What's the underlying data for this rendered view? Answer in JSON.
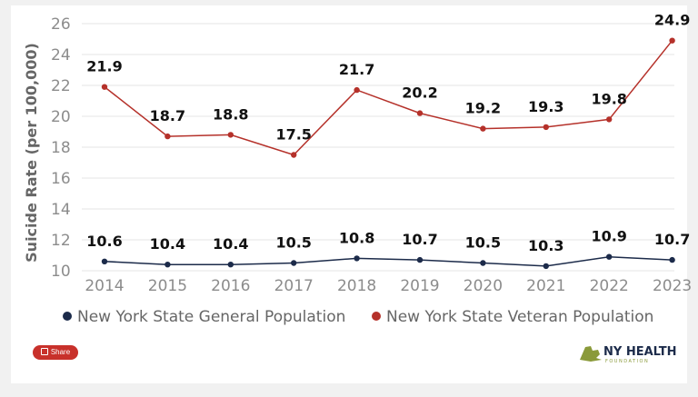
{
  "chart_data": {
    "type": "line",
    "title": "",
    "xlabel": "",
    "ylabel": "Suicide Rate (per 100,000)",
    "x": [
      "2014",
      "2015",
      "2016",
      "2017",
      "2018",
      "2019",
      "2020",
      "2021",
      "2022",
      "2023"
    ],
    "y_ticks": [
      "26",
      "24",
      "22",
      "20",
      "18",
      "16",
      "14",
      "12",
      "10"
    ],
    "ylim": [
      10,
      26
    ],
    "grid": true,
    "legend_position": "bottom",
    "series": [
      {
        "name": "New York State General Population",
        "color": "#1c2b4a",
        "values": [
          10.6,
          10.4,
          10.4,
          10.5,
          10.8,
          10.7,
          10.5,
          10.3,
          10.9,
          10.7
        ],
        "labels": [
          "10.6",
          "10.4",
          "10.4",
          "10.5",
          "10.8",
          "10.7",
          "10.5",
          "10.3",
          "10.9",
          "10.7"
        ]
      },
      {
        "name": "New York State Veteran Population",
        "color": "#b5312a",
        "values": [
          21.9,
          18.7,
          18.8,
          17.5,
          21.7,
          20.2,
          19.2,
          19.3,
          19.8,
          24.9
        ],
        "labels": [
          "21.9",
          "18.7",
          "18.8",
          "17.5",
          "21.7",
          "20.2",
          "19.2",
          "19.3",
          "19.8",
          "24.9"
        ]
      }
    ]
  },
  "share": {
    "label": "Share",
    "icon": "share-icon"
  },
  "logo": {
    "text": "NY HEALTH",
    "subtext": "FOUNDATION"
  }
}
